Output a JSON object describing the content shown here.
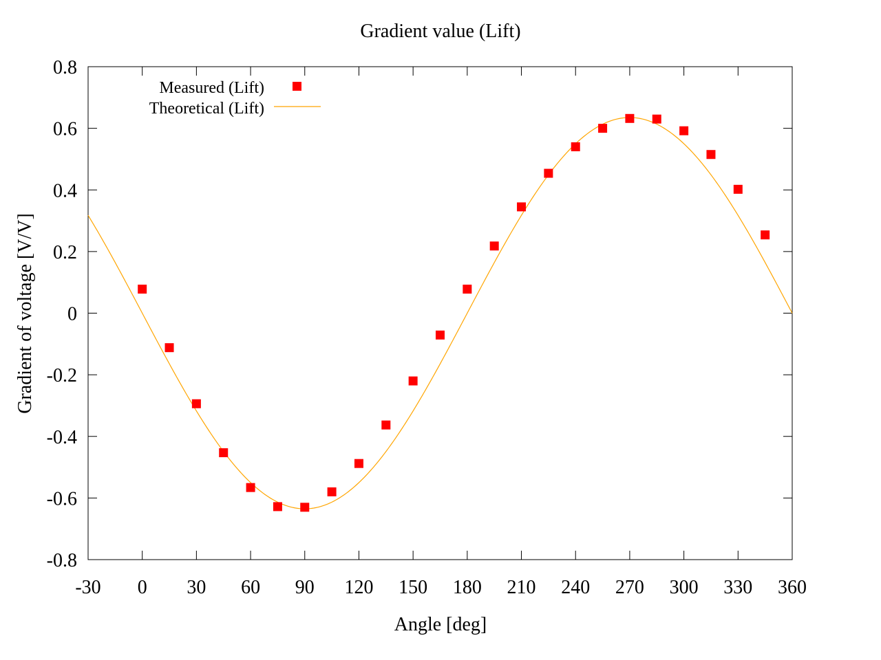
{
  "chart_data": {
    "type": "scatter",
    "title": "Gradient value (Lift)",
    "xlabel": "Angle [deg]",
    "ylabel": "Gradient of voltage [V/V]",
    "xlim": [
      -30,
      360
    ],
    "ylim": [
      -0.8,
      0.8
    ],
    "xticks": [
      -30,
      0,
      30,
      60,
      90,
      120,
      150,
      180,
      210,
      240,
      270,
      300,
      330,
      360
    ],
    "yticks": [
      -0.8,
      -0.6,
      -0.4,
      -0.2,
      0,
      0.2,
      0.4,
      0.6,
      0.8
    ],
    "xtick_labels": [
      "-30",
      "0",
      "30",
      "60",
      "90",
      "120",
      "150",
      "180",
      "210",
      "240",
      "270",
      "300",
      "330",
      "360"
    ],
    "ytick_labels": [
      "-0.8",
      "-0.6",
      "-0.4",
      "-0.2",
      "0",
      "0.2",
      "0.4",
      "0.6",
      "0.8"
    ],
    "grid": false,
    "legend_position": "top-left",
    "series": [
      {
        "name": "Measured (Lift)",
        "kind": "points",
        "color": "#ff0000",
        "x": [
          0,
          15,
          30,
          45,
          60,
          75,
          90,
          105,
          120,
          135,
          150,
          165,
          180,
          195,
          210,
          225,
          240,
          255,
          270,
          285,
          300,
          315,
          330,
          345
        ],
        "y": [
          0.078,
          -0.112,
          -0.294,
          -0.453,
          -0.566,
          -0.628,
          -0.63,
          -0.58,
          -0.488,
          -0.363,
          -0.22,
          -0.071,
          0.078,
          0.218,
          0.345,
          0.454,
          0.54,
          0.6,
          0.632,
          0.63,
          0.592,
          0.515,
          0.402,
          0.254
        ]
      },
      {
        "name": "Theoretical (Lift)",
        "kind": "line",
        "color": "#ffa500",
        "function": "-0.635*sin(x)",
        "amplitude": 0.635
      }
    ]
  }
}
